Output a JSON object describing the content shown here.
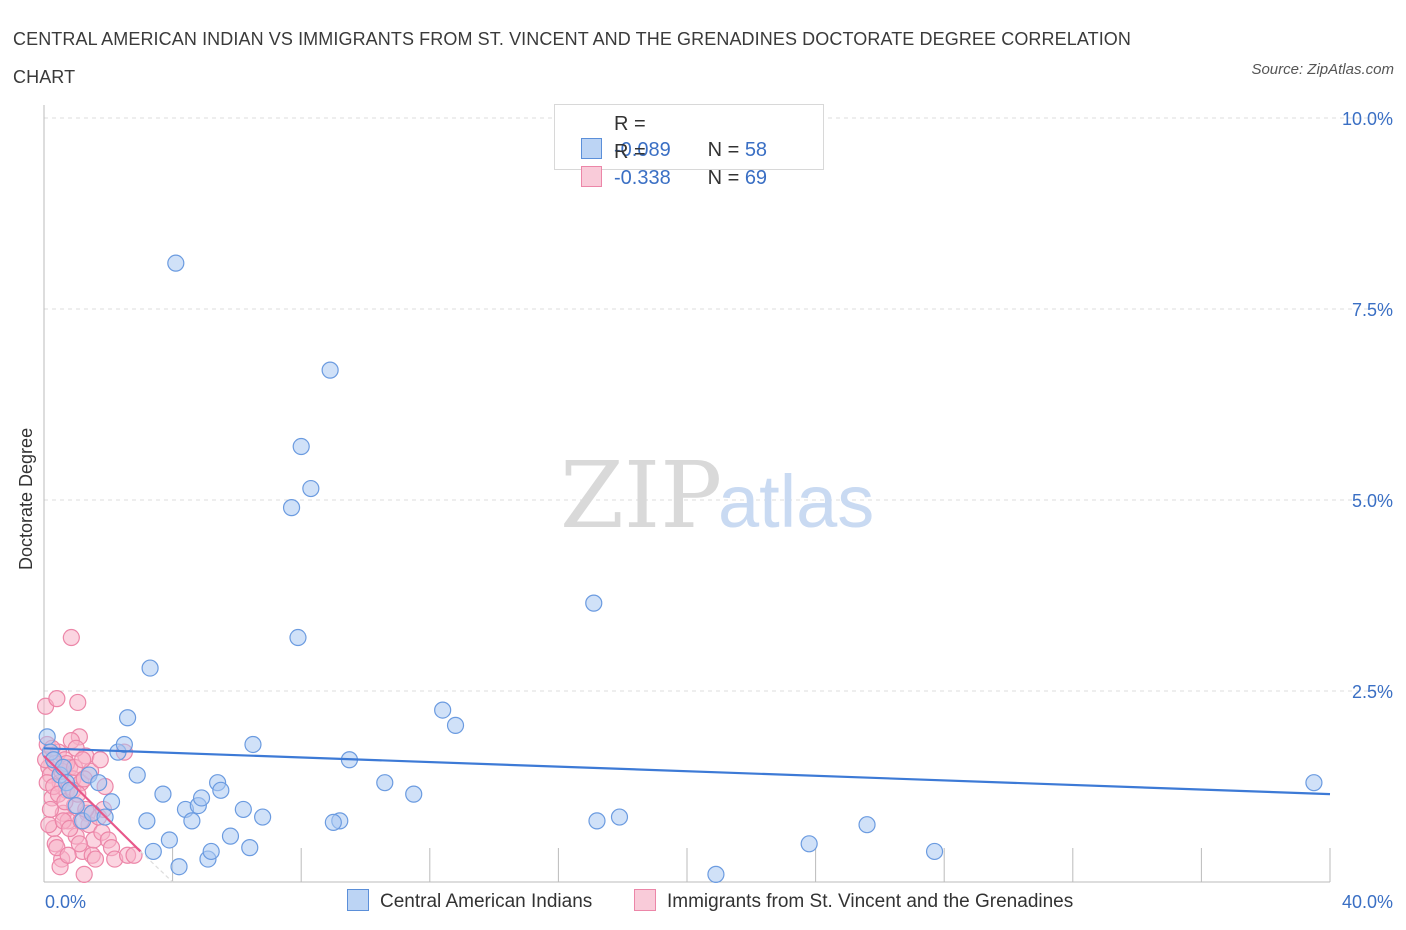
{
  "title": "CENTRAL AMERICAN INDIAN VS IMMIGRANTS FROM ST. VINCENT AND THE GRENADINES DOCTORATE DEGREE CORRELATION CHART",
  "source": "Source: ZipAtlas.com",
  "watermark": {
    "zip": "ZIP",
    "atlas": "atlas"
  },
  "colors": {
    "blue": "#3d7ad6",
    "blue_fill": "#a9c8f2",
    "pink": "#e8578a",
    "pink_fill": "#f7b3c8",
    "axis_text": "#3a6fc4",
    "grid": "#dddddd"
  },
  "legend": {
    "series1": {
      "r_label": "R = ",
      "r_value": "-0.089",
      "n_label": "N = ",
      "n_value": "58"
    },
    "series2": {
      "r_label": "R = ",
      "r_value": "-0.338",
      "n_label": "N = ",
      "n_value": "69"
    }
  },
  "bottom_legend": {
    "series1": "Central American Indians",
    "series2": "Immigrants from St. Vincent and the Grenadines"
  },
  "chart_data": {
    "type": "scatter",
    "title": "CENTRAL AMERICAN INDIAN VS IMMIGRANTS FROM ST. VINCENT AND THE GRENADINES DOCTORATE DEGREE CORRELATION CHART",
    "xlabel": "",
    "ylabel": "Doctorate Degree",
    "xlim": [
      0,
      40
    ],
    "ylim": [
      0,
      10.0
    ],
    "x_tick_labels": [
      "0.0%",
      "40.0%"
    ],
    "y_ticks": [
      2.5,
      5.0,
      7.5,
      10.0
    ],
    "y_tick_labels": [
      "2.5%",
      "5.0%",
      "7.5%",
      "10.0%"
    ],
    "grid": true,
    "legend_position": "top-center",
    "series": [
      {
        "name": "Central American Indians",
        "color": "#3d7ad6",
        "R": -0.089,
        "N": 58,
        "trend": {
          "x": [
            0,
            40
          ],
          "y": [
            1.75,
            1.15
          ]
        },
        "points": [
          [
            0.1,
            1.9
          ],
          [
            0.2,
            1.7
          ],
          [
            0.3,
            1.6
          ],
          [
            0.5,
            1.4
          ],
          [
            0.6,
            1.5
          ],
          [
            0.7,
            1.3
          ],
          [
            0.8,
            1.2
          ],
          [
            1.0,
            1.0
          ],
          [
            1.2,
            0.8
          ],
          [
            1.4,
            1.4
          ],
          [
            1.5,
            0.9
          ],
          [
            1.7,
            1.3
          ],
          [
            1.9,
            0.85
          ],
          [
            2.1,
            1.05
          ],
          [
            2.3,
            1.7
          ],
          [
            2.5,
            1.8
          ],
          [
            2.6,
            2.15
          ],
          [
            2.9,
            1.4
          ],
          [
            3.2,
            0.8
          ],
          [
            3.3,
            2.8
          ],
          [
            3.4,
            0.4
          ],
          [
            3.7,
            1.15
          ],
          [
            3.9,
            0.55
          ],
          [
            4.1,
            8.1
          ],
          [
            4.2,
            0.2
          ],
          [
            4.4,
            0.95
          ],
          [
            4.6,
            0.8
          ],
          [
            4.8,
            1.0
          ],
          [
            4.9,
            1.1
          ],
          [
            5.1,
            0.3
          ],
          [
            5.2,
            0.4
          ],
          [
            5.4,
            1.3
          ],
          [
            5.5,
            1.2
          ],
          [
            5.8,
            0.6
          ],
          [
            6.2,
            0.95
          ],
          [
            6.4,
            0.45
          ],
          [
            6.5,
            1.8
          ],
          [
            6.8,
            0.85
          ],
          [
            7.7,
            4.9
          ],
          [
            7.9,
            3.2
          ],
          [
            8.0,
            5.7
          ],
          [
            8.3,
            5.15
          ],
          [
            8.9,
            6.7
          ],
          [
            9.2,
            0.8
          ],
          [
            9.5,
            1.6
          ],
          [
            10.6,
            1.3
          ],
          [
            11.5,
            1.15
          ],
          [
            12.4,
            2.25
          ],
          [
            12.8,
            2.05
          ],
          [
            17.2,
            0.8
          ],
          [
            17.1,
            3.65
          ],
          [
            17.9,
            0.85
          ],
          [
            20.9,
            0.1
          ],
          [
            23.8,
            0.5
          ],
          [
            25.6,
            0.75
          ],
          [
            27.7,
            0.4
          ],
          [
            39.5,
            1.3
          ],
          [
            9.0,
            0.78
          ]
        ]
      },
      {
        "name": "Immigrants from St. Vincent and the Grenadines",
        "color": "#e8578a",
        "R": -0.338,
        "N": 69,
        "trend": {
          "x": [
            0,
            3.0
          ],
          "y": [
            1.65,
            0.4
          ]
        },
        "points": [
          [
            0.05,
            2.3
          ],
          [
            0.1,
            1.8
          ],
          [
            0.15,
            1.5
          ],
          [
            0.2,
            1.4
          ],
          [
            0.25,
            1.1
          ],
          [
            0.3,
            0.7
          ],
          [
            0.35,
            0.5
          ],
          [
            0.4,
            2.4
          ],
          [
            0.45,
            1.7
          ],
          [
            0.5,
            1.3
          ],
          [
            0.55,
            0.3
          ],
          [
            0.6,
            0.9
          ],
          [
            0.65,
            1.6
          ],
          [
            0.7,
            1.2
          ],
          [
            0.75,
            0.8
          ],
          [
            0.8,
            1.5
          ],
          [
            0.85,
            3.2
          ],
          [
            0.9,
            1.35
          ],
          [
            0.95,
            1.0
          ],
          [
            1.0,
            0.6
          ],
          [
            1.05,
            2.35
          ],
          [
            1.1,
            1.9
          ],
          [
            1.15,
            1.3
          ],
          [
            1.2,
            0.4
          ],
          [
            1.25,
            0.1
          ],
          [
            1.3,
            1.65
          ],
          [
            1.35,
            0.9
          ],
          [
            1.4,
            0.75
          ],
          [
            1.45,
            1.45
          ],
          [
            1.5,
            0.35
          ],
          [
            1.55,
            0.55
          ],
          [
            1.6,
            0.3
          ],
          [
            1.7,
            0.85
          ],
          [
            1.75,
            1.6
          ],
          [
            1.8,
            0.65
          ],
          [
            1.85,
            0.95
          ],
          [
            1.9,
            1.25
          ],
          [
            2.0,
            0.55
          ],
          [
            2.1,
            0.45
          ],
          [
            2.2,
            0.3
          ],
          [
            2.5,
            1.7
          ],
          [
            2.6,
            0.35
          ],
          [
            2.8,
            0.35
          ],
          [
            0.05,
            1.6
          ],
          [
            0.1,
            1.3
          ],
          [
            0.15,
            0.75
          ],
          [
            0.2,
            0.95
          ],
          [
            0.25,
            1.75
          ],
          [
            0.3,
            1.25
          ],
          [
            0.35,
            1.55
          ],
          [
            0.4,
            0.45
          ],
          [
            0.45,
            1.15
          ],
          [
            0.5,
            0.2
          ],
          [
            0.55,
            1.45
          ],
          [
            0.6,
            0.8
          ],
          [
            0.65,
            1.05
          ],
          [
            0.7,
            1.55
          ],
          [
            0.75,
            0.35
          ],
          [
            0.8,
            0.7
          ],
          [
            0.85,
            1.85
          ],
          [
            0.9,
            1.2
          ],
          [
            0.95,
            1.5
          ],
          [
            1.0,
            1.75
          ],
          [
            1.05,
            1.15
          ],
          [
            1.1,
            0.5
          ],
          [
            1.15,
            0.8
          ],
          [
            1.2,
            1.6
          ],
          [
            1.25,
            1.35
          ],
          [
            1.3,
            0.95
          ]
        ]
      }
    ]
  }
}
